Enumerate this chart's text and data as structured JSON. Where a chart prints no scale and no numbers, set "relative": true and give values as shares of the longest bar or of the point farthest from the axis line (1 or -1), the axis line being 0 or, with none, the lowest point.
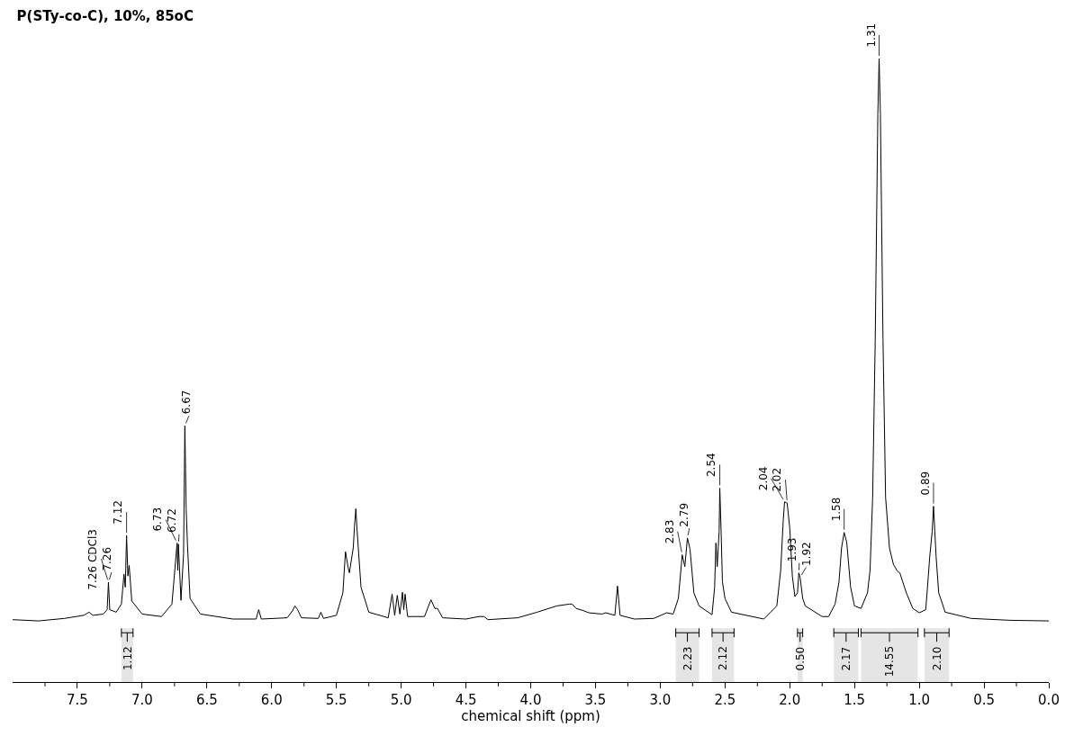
{
  "chart_data": {
    "type": "line",
    "relative": true,
    "title": "P(STy-co-C), 10%, 85oC",
    "xlabel": "chemical shift (ppm)",
    "marker": "none",
    "line_style": "solid",
    "grid": false,
    "tick_labels": "x",
    "xlim": [
      8.0,
      0.0
    ],
    "xticks": [
      {
        "value": 7.75,
        "label": null
      },
      7.5,
      {
        "value": 7.25,
        "label": null
      },
      {
        "value": 7,
        "label": "7.0"
      },
      {
        "value": 6.75,
        "label": null
      },
      6.5,
      {
        "value": 6.25,
        "label": null
      },
      {
        "value": 6,
        "label": "6.0"
      },
      {
        "value": 5.75,
        "label": null
      },
      5.5,
      {
        "value": 5.25,
        "label": null
      },
      {
        "value": 5,
        "label": "5.0"
      },
      {
        "value": 4.75,
        "label": null
      },
      4.5,
      {
        "value": 4.25,
        "label": null
      },
      {
        "value": 4,
        "label": "4.0"
      },
      {
        "value": 3.75,
        "label": null
      },
      3.5,
      {
        "value": 3.25,
        "label": null
      },
      {
        "value": 3,
        "label": "3.0"
      },
      {
        "value": 2.75,
        "label": null
      },
      2.5,
      {
        "value": 2.25,
        "label": null
      },
      {
        "value": 2,
        "label": "2.0"
      },
      {
        "value": 1.75,
        "label": null
      },
      1.5,
      {
        "value": 1.25,
        "label": null
      },
      {
        "value": 1,
        "label": "1.0"
      },
      {
        "value": 0.75,
        "label": null
      },
      0.5,
      {
        "value": 0.25,
        "label": null
      },
      {
        "value": 0,
        "label": "0.0"
      }
    ],
    "x": [
      8.0,
      7.8,
      7.6,
      7.45,
      7.41,
      7.38,
      7.3,
      7.27,
      7.26,
      7.25,
      7.2,
      7.16,
      7.14,
      7.13,
      7.12,
      7.11,
      7.1,
      7.08,
      7.0,
      6.85,
      6.77,
      6.73,
      6.725,
      6.72,
      6.7,
      6.68,
      6.67,
      6.66,
      6.65,
      6.63,
      6.55,
      6.3,
      6.12,
      6.1,
      6.08,
      5.88,
      5.84,
      5.82,
      5.8,
      5.77,
      5.64,
      5.62,
      5.6,
      5.5,
      5.45,
      5.43,
      5.41,
      5.4,
      5.37,
      5.36,
      5.35,
      5.34,
      5.31,
      5.25,
      5.1,
      5.07,
      5.05,
      5.03,
      5.01,
      4.99,
      4.98,
      4.97,
      4.95,
      4.82,
      4.77,
      4.74,
      4.72,
      4.68,
      4.5,
      4.4,
      4.36,
      4.33,
      4.1,
      3.95,
      3.8,
      3.7,
      3.68,
      3.65,
      3.6,
      3.55,
      3.45,
      3.42,
      3.35,
      3.33,
      3.31,
      3.2,
      3.05,
      2.95,
      2.9,
      2.86,
      2.83,
      2.81,
      2.79,
      2.77,
      2.74,
      2.7,
      2.6,
      2.58,
      2.57,
      2.56,
      2.545,
      2.54,
      2.53,
      2.52,
      2.5,
      2.45,
      2.2,
      2.1,
      2.07,
      2.05,
      2.04,
      2.02,
      2.0,
      1.98,
      1.96,
      1.94,
      1.93,
      1.92,
      1.9,
      1.88,
      1.75,
      1.7,
      1.65,
      1.62,
      1.6,
      1.58,
      1.56,
      1.53,
      1.5,
      1.45,
      1.4,
      1.38,
      1.36,
      1.34,
      1.32,
      1.31,
      1.3,
      1.28,
      1.26,
      1.23,
      1.2,
      1.17,
      1.15,
      1.1,
      1.05,
      1.0,
      0.95,
      0.93,
      0.92,
      0.9,
      0.89,
      0.88,
      0.87,
      0.85,
      0.8,
      0.6,
      0.3,
      0.0
    ],
    "series": [
      {
        "color": "#000000",
        "values": [
          0.1,
          0.098,
          0.102,
          0.107,
          0.112,
          0.107,
          0.109,
          0.116,
          0.16,
          0.116,
          0.112,
          0.125,
          0.173,
          0.152,
          0.235,
          0.17,
          0.187,
          0.13,
          0.109,
          0.105,
          0.125,
          0.223,
          0.179,
          0.221,
          0.131,
          0.206,
          0.411,
          0.278,
          0.221,
          0.134,
          0.109,
          0.101,
          0.101,
          0.116,
          0.101,
          0.103,
          0.114,
          0.122,
          0.116,
          0.103,
          0.102,
          0.112,
          0.102,
          0.107,
          0.143,
          0.209,
          0.184,
          0.175,
          0.215,
          0.251,
          0.278,
          0.242,
          0.152,
          0.112,
          0.103,
          0.141,
          0.107,
          0.139,
          0.109,
          0.144,
          0.116,
          0.141,
          0.105,
          0.105,
          0.132,
          0.118,
          0.118,
          0.103,
          0.101,
          0.105,
          0.105,
          0.1,
          0.103,
          0.112,
          0.122,
          0.125,
          0.125,
          0.118,
          0.115,
          0.111,
          0.109,
          0.111,
          0.107,
          0.154,
          0.107,
          0.101,
          0.102,
          0.111,
          0.109,
          0.134,
          0.204,
          0.185,
          0.231,
          0.213,
          0.143,
          0.122,
          0.108,
          0.152,
          0.223,
          0.185,
          0.242,
          0.311,
          0.242,
          0.161,
          0.134,
          0.112,
          0.101,
          0.122,
          0.179,
          0.26,
          0.289,
          0.287,
          0.247,
          0.17,
          0.137,
          0.143,
          0.175,
          0.168,
          0.134,
          0.122,
          0.105,
          0.105,
          0.125,
          0.16,
          0.215,
          0.24,
          0.224,
          0.152,
          0.122,
          0.118,
          0.143,
          0.179,
          0.296,
          0.549,
          0.91,
          1.0,
          0.91,
          0.549,
          0.296,
          0.215,
          0.189,
          0.178,
          0.175,
          0.143,
          0.118,
          0.111,
          0.116,
          0.17,
          0.199,
          0.242,
          0.282,
          0.242,
          0.201,
          0.143,
          0.112,
          0.102,
          0.099,
          0.098
        ]
      }
    ],
    "annotations": [
      {
        "text": "7.26 CDCl3",
        "x": 7.26,
        "y": 0.16
      },
      {
        "text": "7.26",
        "x": 7.26,
        "y": 0.16
      },
      {
        "text": "7.12",
        "x": 7.12,
        "y": 0.235
      },
      {
        "text": "6.73",
        "x": 6.73,
        "y": 0.223
      },
      {
        "text": "6.72",
        "x": 6.72,
        "y": 0.221
      },
      {
        "text": "6.67",
        "x": 6.67,
        "y": 0.411
      },
      {
        "text": "2.83",
        "x": 2.83,
        "y": 0.204
      },
      {
        "text": "2.79",
        "x": 2.79,
        "y": 0.231
      },
      {
        "text": "2.54",
        "x": 2.54,
        "y": 0.311
      },
      {
        "text": "2.04",
        "x": 2.04,
        "y": 0.289
      },
      {
        "text": "2.02",
        "x": 2.02,
        "y": 0.287
      },
      {
        "text": "1.93",
        "x": 1.93,
        "y": 0.175
      },
      {
        "text": "1.92",
        "x": 1.92,
        "y": 0.168
      },
      {
        "text": "1.58",
        "x": 1.58,
        "y": 0.24
      },
      {
        "text": "1.31",
        "x": 1.31,
        "y": 1.0
      },
      {
        "text": "0.89",
        "x": 0.89,
        "y": 0.282
      }
    ],
    "bands": [
      {
        "axis": "x",
        "from": 7.16,
        "to": 7.07,
        "label": "1.12"
      },
      {
        "axis": "x",
        "from": 2.88,
        "to": 2.7,
        "label": "2.23"
      },
      {
        "axis": "x",
        "from": 2.6,
        "to": 2.43,
        "label": "2.12"
      },
      {
        "axis": "x",
        "from": 1.94,
        "to": 1.9,
        "label": "0.50"
      },
      {
        "axis": "x",
        "from": 1.66,
        "to": 1.47,
        "label": "2.17"
      },
      {
        "axis": "x",
        "from": 1.45,
        "to": 1.01,
        "label": "14.55"
      },
      {
        "axis": "x",
        "from": 0.96,
        "to": 0.77,
        "label": "2.10"
      }
    ]
  }
}
